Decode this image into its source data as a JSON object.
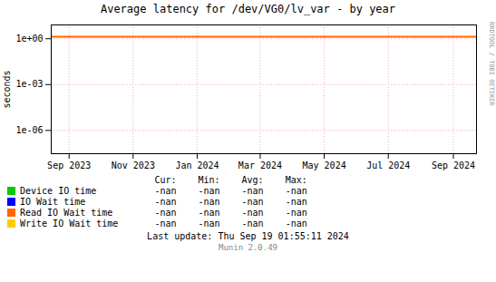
{
  "chart_data": {
    "type": "line",
    "title": "Average latency for /dev/VG0/lv_var - by year",
    "y_label": "seconds",
    "log": "y",
    "grid": true,
    "xlim": [
      1692057600,
      1727049600
    ],
    "xticks": [
      {
        "value": 1693526400,
        "label": "Sep 2023"
      },
      {
        "value": 1698796800,
        "label": "Nov 2023"
      },
      {
        "value": 1704067200,
        "label": "Jan 2024"
      },
      {
        "value": 1709251200,
        "label": "Mar 2024"
      },
      {
        "value": 1714521600,
        "label": "May 2024"
      },
      {
        "value": 1719792000,
        "label": "Jul 2024"
      },
      {
        "value": 1725148800,
        "label": "Sep 2024"
      }
    ],
    "ylim": [
      3e-08,
      8.0
    ],
    "yticks": [
      {
        "value": 1e-06,
        "label": "1e-06"
      },
      {
        "value": 0.001,
        "label": "1e-03"
      },
      {
        "value": 1,
        "label": "1e+00"
      }
    ],
    "hlines": [
      {
        "value": 1.35,
        "color": "#ff6600"
      }
    ],
    "x": [],
    "series": [
      {
        "name": "Device IO time",
        "color": "#00cc00",
        "values": [],
        "table_values": [
          "-nan",
          "-nan",
          "-nan",
          "-nan"
        ]
      },
      {
        "name": "IO Wait time",
        "color": "#0000ff",
        "values": [],
        "table_values": [
          "-nan",
          "-nan",
          "-nan",
          "-nan"
        ]
      },
      {
        "name": "Read IO Wait time",
        "color": "#ff6600",
        "values": [],
        "table_values": [
          "-nan",
          "-nan",
          "-nan",
          "-nan"
        ]
      },
      {
        "name": "Write IO Wait time",
        "color": "#ffcc00",
        "values": [],
        "table_values": [
          "-nan",
          "-nan",
          "-nan",
          "-nan"
        ]
      }
    ],
    "table_headers": [
      "Cur:",
      "Min:",
      "Avg:",
      "Max:"
    ],
    "annotations": [
      "Last update: Thu Sep 19 01:55:11 2024",
      "Munin 2.0.49",
      "RRDTOOL / TOBI OETIKER"
    ]
  }
}
